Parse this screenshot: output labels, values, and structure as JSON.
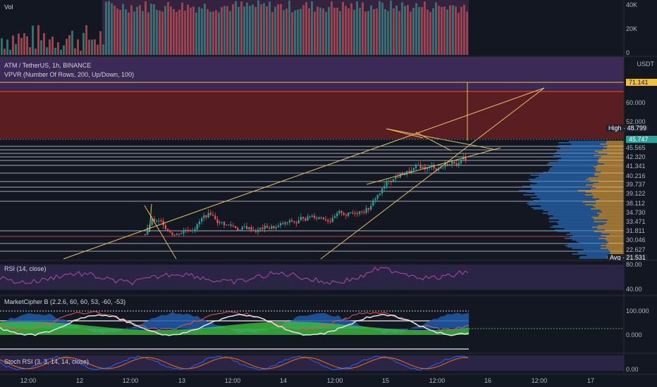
{
  "chart_data": [
    {
      "type": "bar",
      "pane": "volume",
      "title": "Vol",
      "yticks": [
        "40K",
        "20K",
        "0"
      ],
      "ylim": [
        0,
        48000
      ]
    },
    {
      "type": "candlestick",
      "pane": "price",
      "title": "ATM / TetherUS, 1h, BINANCE",
      "subtitle": "VPVR (Number Of Rows, 200, Up/Down, 100)",
      "currency": "USDT",
      "yticks": [
        "60.000",
        "52.000"
      ],
      "price_levels": [
        "71.141",
        "45.747",
        "45.565",
        "42.320",
        "41.341",
        "40.216",
        "39.737",
        "39.122",
        "38.112",
        "34.730",
        "33.471",
        "31.811",
        "30.046",
        "22.627"
      ],
      "high_label": "High",
      "high_value": "48.799",
      "current_price": "45.747",
      "avg_label": "Avg",
      "avg_value": "21.531",
      "xticks": [
        "12:00",
        "12",
        "12:00",
        "13",
        "12:00",
        "14",
        "12:00",
        "15",
        "12:00",
        "16",
        "12:00",
        "17"
      ],
      "ohlc_hourly_sample": [
        {
          "day": "12 12:00",
          "close": 28.5
        },
        {
          "day": "13 00:00",
          "close": 31.0
        },
        {
          "day": "13 12:00",
          "close": 29.2
        },
        {
          "day": "14 00:00",
          "close": 28.6
        },
        {
          "day": "14 12:00",
          "close": 33.5
        },
        {
          "day": "15 00:00",
          "close": 41.3
        },
        {
          "day": "15 12:00",
          "close": 44.8
        },
        {
          "day": "16 00:00",
          "close": 45.7
        }
      ]
    },
    {
      "type": "line",
      "pane": "rsi",
      "title": "RSI (14, close)",
      "yticks": [
        "80.00",
        "40.00"
      ]
    },
    {
      "type": "area",
      "pane": "marketcipher",
      "title": "MarketCipher B (2.2.6, 60, 60, 53, -60, -53)",
      "yticks": [
        "100.000",
        "0.000"
      ]
    },
    {
      "type": "line",
      "pane": "stochrsi",
      "title": "Stoch RSI (3, 3, 14, 14, close)",
      "yticks": [
        "0.00"
      ]
    }
  ],
  "colors": {
    "background": "#131722",
    "up": "#26a69a",
    "down": "#ef5350",
    "volume_up": "#1e7a72",
    "volume_down": "#b23a3f",
    "purple_zone": "#3a2a55",
    "red_zone": "#5a1e22",
    "trendline": "#e0c060",
    "current_price": "#26a69a",
    "high_badge": "#1e222d"
  }
}
